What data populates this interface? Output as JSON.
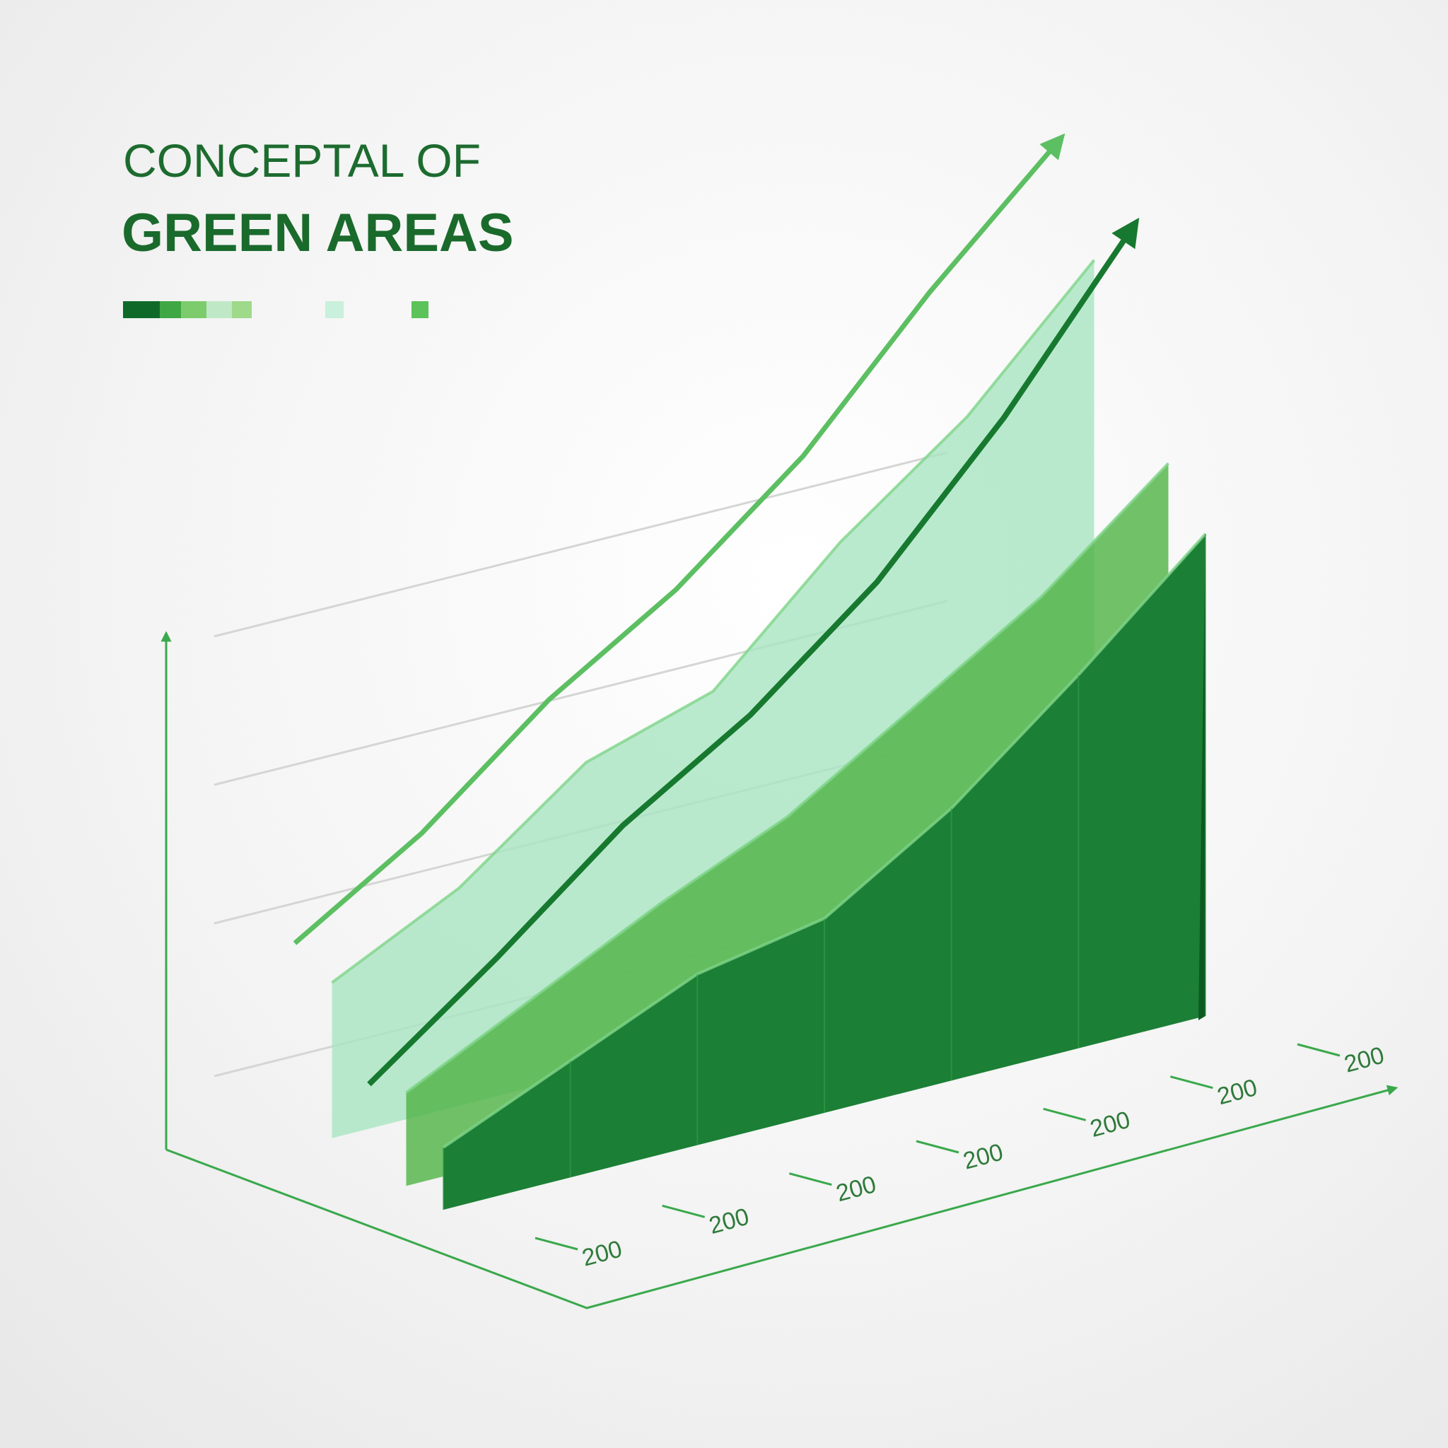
{
  "chart_data": {
    "type": "area3d",
    "title": "CONCEPTAL OF",
    "subtitle": "GREEN AREAS",
    "categories": [
      "200",
      "200",
      "200",
      "200",
      "200",
      "200",
      "200"
    ],
    "ylim": [
      0,
      100
    ],
    "series": [
      {
        "name": null,
        "kind": "line",
        "color": "#5cbf62",
        "values": [
          22,
          32,
          45,
          55,
          68,
          85,
          100
        ]
      },
      {
        "name": null,
        "kind": "area",
        "color": "#a9e5c2",
        "values": [
          20,
          28,
          40,
          45,
          60,
          72,
          88
        ]
      },
      {
        "name": null,
        "kind": "line",
        "color": "#17792f",
        "values": [
          10,
          22,
          35,
          45,
          58,
          75,
          95
        ]
      },
      {
        "name": null,
        "kind": "area",
        "color": "#4fb343",
        "values": [
          12,
          20,
          28,
          35,
          45,
          55,
          68
        ]
      },
      {
        "name": null,
        "kind": "area",
        "color": "#1b7f35",
        "values": [
          8,
          15,
          22,
          25,
          35,
          48,
          62
        ]
      }
    ]
  }
}
